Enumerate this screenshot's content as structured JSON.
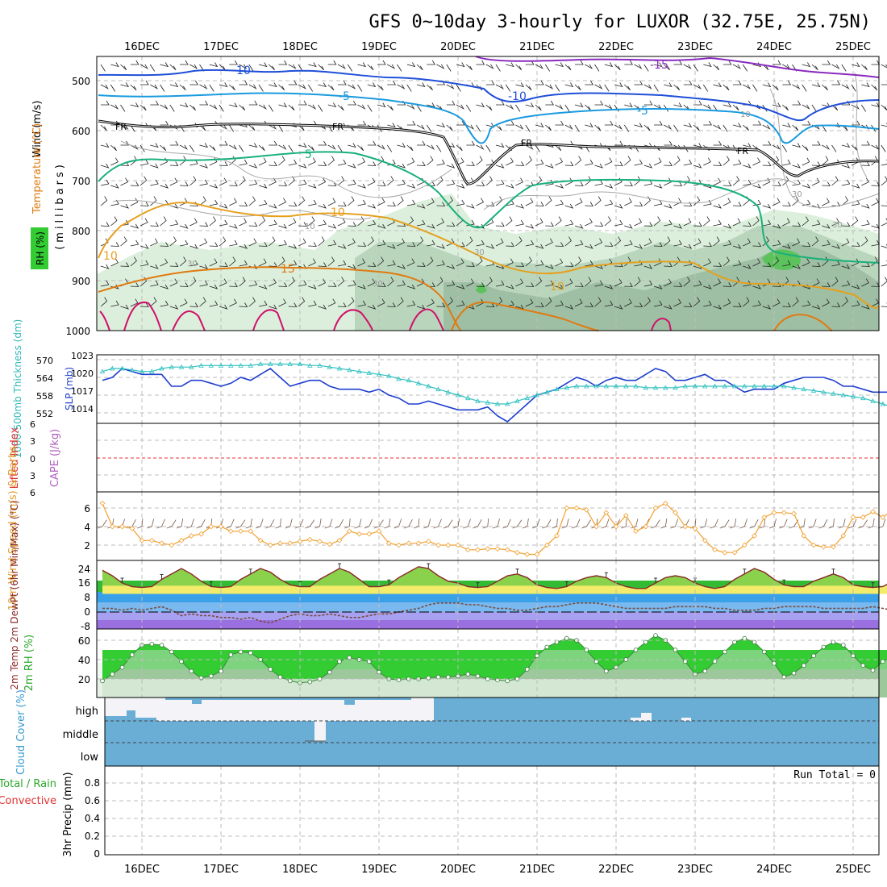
{
  "title": "GFS 0~10day 3-hourly for LUXOR (32.75E, 25.75N)",
  "date_labels": [
    "16DEC",
    "17DEC",
    "18DEC",
    "19DEC",
    "20DEC",
    "21DEC",
    "22DEC",
    "23DEC",
    "24DEC",
    "25DEC"
  ],
  "colors": {
    "temp_neg15": "#8a2bbf",
    "temp_neg10": "#1f4fd8",
    "temp_neg5": "#1a9adf",
    "freezing": "#000000",
    "temp_5": "#18b07a",
    "temp_10": "#e6a020",
    "temp_15": "#e07a10",
    "temp_20": "#d0106a",
    "rh_fill": "#d8ecd8",
    "slp": "#1f3fd0",
    "thickness": "#30c0c0",
    "wind": "#f0a030",
    "tmax_fill": "#f3ec6a",
    "temp_line": "#8a2a2a",
    "dewpt": "#7a4a3a",
    "rh_line": "#3a8a3a",
    "cloud": "#6aaed6",
    "cloud_clear": "#f4f4f8",
    "cape_zero": "#e03030"
  },
  "panels": {
    "upper": {
      "ylabel_wind": "Wind (m/s)",
      "ylabel_temp": "Temperature (°C)",
      "ylabel_rh": "RH (%)",
      "ylabel_mb": "(millibars)",
      "yticks": [
        "500",
        "600",
        "700",
        "800",
        "900",
        "1000"
      ],
      "contour_labels": {
        "neg15": "-15",
        "neg10_a": "-10",
        "neg10_b": "-10",
        "neg5_a": "-5",
        "neg5_b": "-5",
        "fr_a": "FR",
        "fr_b": "FR",
        "fr_c": "FR",
        "fr_d": "FR",
        "pos5": "5",
        "pos10_a": "10",
        "pos10_b": "10",
        "pos10_c": "10",
        "pos15": "15",
        "rh10_a": "10",
        "rh10_b": "10",
        "rh30_a": "30",
        "rh30_b": "30",
        "rh30_c": "30",
        "rh30_d": "30",
        "rh30_e": "30"
      }
    },
    "slp": {
      "ylabel_thk": "1000-500mb Thickness (dm)",
      "ylabel_slp": "SLP (mb)",
      "left_ticks": [
        "570",
        "564",
        "558",
        "552"
      ],
      "right_ticks": [
        "1023",
        "1020",
        "1017",
        "1014"
      ]
    },
    "cape": {
      "ylabel_li": "Lifted Index",
      "ylabel_cape": "CAPE (J/kg)",
      "ticks": [
        "6",
        "3",
        "0",
        "3",
        "6"
      ]
    },
    "wind": {
      "ylabel": "10m Wind Speed (m/s) & Barbs",
      "ticks": [
        "6",
        "4",
        "2"
      ]
    },
    "temp": {
      "ylabel": "2m Temp 2m DewPt (6hr Min/Max) (°C)",
      "ticks": [
        "24",
        "16",
        "8",
        "0",
        "-8"
      ]
    },
    "rh": {
      "ylabel": "2m RH (%)",
      "ticks": [
        "60",
        "40",
        "20"
      ]
    },
    "cloud": {
      "ylabel": "Cloud Cover (%)",
      "levels": [
        "high",
        "middle",
        "low"
      ]
    },
    "precip": {
      "ylabel_total": "Total / Rain",
      "ylabel_conv": "Convective",
      "ylabel": "3hr Precip (mm)",
      "ticks": [
        "0.8",
        "0.6",
        "0.4",
        "0.2",
        "0"
      ],
      "run_total": "Run Total = 0"
    }
  },
  "chart_data": [
    {
      "type": "line",
      "name": "1000-500mb Thickness and SLP",
      "x_unit": "3-hourly steps from 15DEC 12Z",
      "series": [
        {
          "name": "SLP (mb)",
          "values": [
            1019.5,
            1020,
            1021.5,
            1021,
            1020.5,
            1020.5,
            1020.5,
            1018.5,
            1018.5,
            1019.5,
            1019.5,
            1019,
            1018.5,
            1019,
            1020,
            1019.5,
            1020.5,
            1021.5,
            1020,
            1018.5,
            1019,
            1019.5,
            1019.5,
            1018.5,
            1018,
            1018,
            1018,
            1017.5,
            1018,
            1017,
            1016.5,
            1015.5,
            1015.5,
            1016,
            1015.5,
            1015,
            1014.5,
            1014.5,
            1014.5,
            1015,
            1013.5,
            1012.5,
            1014,
            1015.5,
            1017,
            1017.5,
            1018,
            1019,
            1020,
            1019.5,
            1018.5,
            1019.5,
            1020,
            1019.5,
            1019.5,
            1020.5,
            1021.5,
            1021,
            1019.5,
            1019.5,
            1020,
            1020.5,
            1019.5,
            1019.5,
            1018.5,
            1017.5,
            1018,
            1018,
            1018,
            1019,
            1019.5,
            1020,
            1020,
            1020,
            1019.5,
            1018.5,
            1018.5,
            1018,
            1017.5,
            1017.5,
            1017.5,
            1016,
            1016.5,
            1016.5,
            1018.5,
            1018,
            1017.5,
            1017.5,
            1018,
            1017.5,
            1017,
            1016.5,
            1016.5,
            1018,
            1017.5,
            1018.5,
            1020,
            1019.5,
            1019.5,
            1019,
            1017,
            1017.5,
            1018,
            1018,
            1018,
            1019,
            1019,
            1019.5,
            1020
          ]
        },
        {
          "name": "Thickness (dm)",
          "values": [
            566,
            567,
            567,
            566.5,
            566,
            566,
            567,
            567.5,
            567.5,
            567.5,
            568,
            568,
            568,
            568,
            568,
            568,
            568.5,
            568.5,
            568.5,
            568.5,
            568.5,
            568,
            568,
            567.5,
            567,
            566.5,
            566,
            565.5,
            565,
            564.5,
            563.5,
            563,
            562,
            561,
            560,
            559,
            558,
            557,
            556,
            555.5,
            555,
            555,
            556,
            557,
            558,
            559,
            560,
            560.5,
            561,
            561,
            561,
            561,
            561,
            561,
            561,
            560.5,
            560.5,
            560.5,
            560.5,
            561,
            561,
            561,
            561,
            561,
            561,
            561,
            561,
            561,
            561,
            561,
            560.5,
            560,
            559.5,
            559,
            558.5,
            558,
            557.5,
            557,
            556,
            555,
            554,
            553,
            553,
            553.5,
            554,
            555,
            555.5,
            556,
            556,
            556,
            556,
            556
          ]
        }
      ]
    },
    {
      "type": "line",
      "name": "10m Wind Speed (m/s)",
      "values": [
        6.5,
        4,
        4,
        3.8,
        2.5,
        2.5,
        2.2,
        2,
        2.5,
        3,
        3.2,
        4,
        4,
        3.5,
        3.5,
        3.5,
        2.5,
        2,
        2.2,
        2.2,
        2.4,
        2.6,
        2.4,
        2.1,
        2.5,
        3.5,
        3.2,
        3.2,
        3.5,
        2.2,
        2,
        2.2,
        2.2,
        2.4,
        2,
        2,
        2,
        1.5,
        1.5,
        1.6,
        1.6,
        1.5,
        1.2,
        1,
        1,
        2,
        3,
        6,
        6,
        5.8,
        4,
        5.5,
        4,
        5.2,
        3.5,
        4,
        6,
        6.5,
        5.5,
        4,
        3.8,
        2.5,
        1.5,
        1.2,
        1.2,
        2,
        3,
        5,
        5.5,
        5.5,
        5.4,
        3,
        2,
        1.8,
        1.8,
        3,
        5,
        5,
        5.6,
        5,
        5.8,
        4.5,
        2.5,
        2.5,
        2.5,
        2.5,
        4,
        5.2,
        5,
        7,
        6.5,
        5,
        4.5,
        4.5,
        4,
        3.8,
        4,
        4,
        4.5,
        7,
        6.5,
        4,
        3.5,
        3.5,
        2,
        2.5,
        2.5,
        3.5,
        3,
        2
      ]
    },
    {
      "type": "area",
      "name": "2m Temp / DewPt (°C)",
      "series": [
        {
          "name": "2m Temp",
          "values": [
            23,
            20,
            16,
            14,
            13.5,
            14,
            18,
            21,
            24,
            21,
            17,
            14,
            13.5,
            14,
            18,
            21,
            24,
            22,
            18,
            15,
            14,
            14,
            18,
            21,
            24,
            22,
            18,
            14,
            14,
            15,
            19,
            22,
            25,
            24,
            20,
            17,
            16,
            14,
            13.5,
            14,
            17,
            20,
            21,
            19,
            15,
            13.5,
            13,
            14,
            17,
            19,
            20,
            19,
            16,
            14,
            13,
            13,
            16,
            19,
            20,
            19,
            16,
            14,
            13,
            14,
            18,
            21,
            24,
            22,
            18,
            15,
            14,
            14,
            17,
            19,
            21,
            19,
            15,
            14,
            13.5,
            14,
            17,
            18,
            19,
            18,
            15,
            13,
            12,
            11,
            10.5,
            10,
            11,
            11
          ]
        },
        {
          "name": "2m DewPt",
          "values": [
            2,
            2,
            1,
            2,
            1,
            2,
            3,
            1,
            -2,
            -1,
            -2,
            -2,
            -3,
            -3,
            -4,
            -3,
            -5,
            -6,
            -4,
            -2,
            -1,
            -2,
            -2,
            -1,
            -2,
            -3,
            -3,
            -2,
            -1,
            -1,
            0,
            1,
            2,
            4,
            5,
            5,
            5,
            4,
            4,
            3,
            2,
            2,
            1,
            1,
            2,
            3,
            3,
            4,
            5,
            5,
            5,
            4,
            3,
            2,
            2,
            2,
            2,
            2,
            3,
            3,
            3,
            3,
            2,
            2,
            1,
            1,
            1,
            2,
            2,
            3,
            3,
            3,
            3,
            2,
            2,
            2,
            2,
            2,
            3,
            2,
            1,
            1,
            0,
            0,
            0,
            -1,
            -1,
            -1
          ]
        }
      ]
    },
    {
      "type": "area",
      "name": "2m RH (%)",
      "values": [
        18,
        25,
        32,
        45,
        55,
        56,
        55,
        48,
        38,
        28,
        21,
        23,
        28,
        45,
        48,
        47,
        40,
        30,
        22,
        18,
        16,
        17,
        20,
        27,
        38,
        42,
        40,
        38,
        27,
        20,
        19,
        20,
        20,
        21,
        22,
        22,
        23,
        25,
        23,
        20,
        19,
        18,
        20,
        30,
        44,
        53,
        58,
        62,
        60,
        50,
        38,
        28,
        32,
        40,
        50,
        58,
        65,
        60,
        50,
        38,
        25,
        28,
        38,
        48,
        58,
        62,
        58,
        48,
        36,
        22,
        26,
        34,
        44,
        53,
        58,
        55,
        44,
        34,
        29,
        38,
        44,
        51,
        56,
        60,
        56,
        44,
        34,
        33,
        38,
        44,
        50,
        54,
        56,
        52,
        48,
        44
      ]
    }
  ]
}
